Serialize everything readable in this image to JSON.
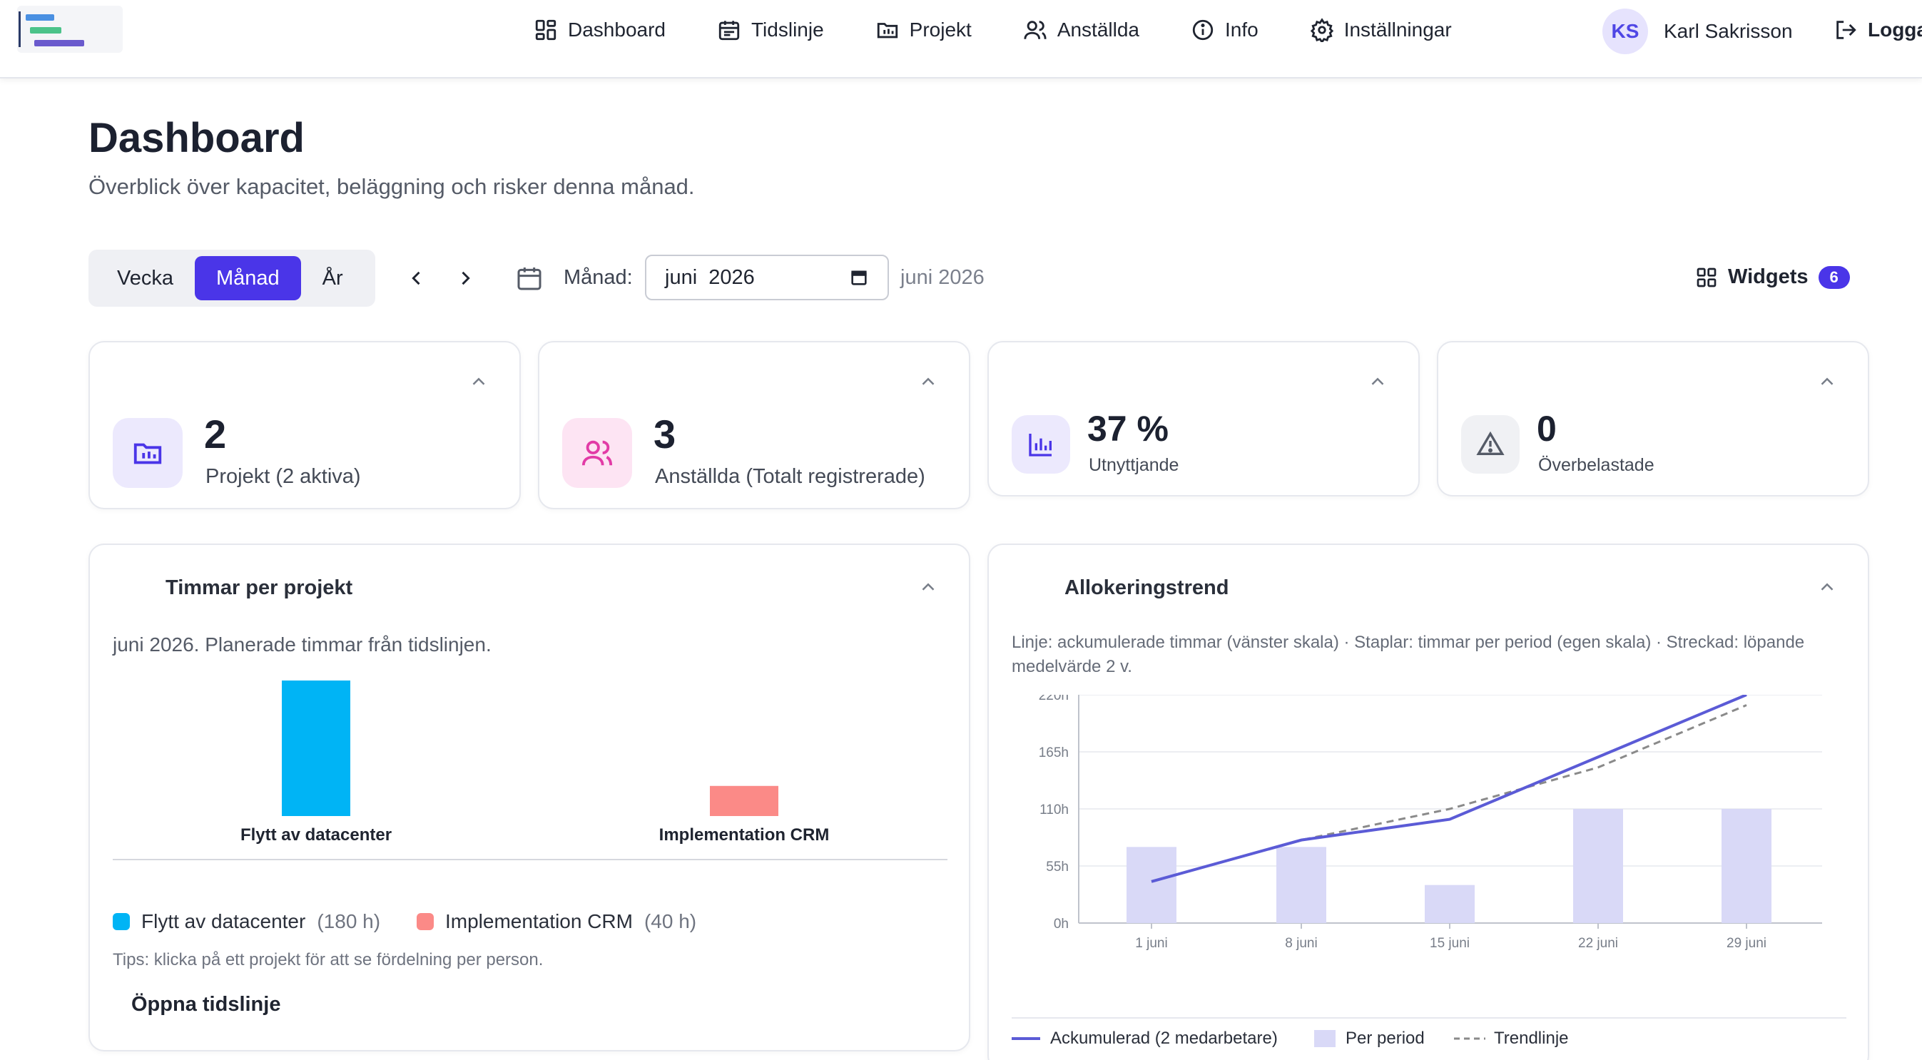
{
  "nav": {
    "items": [
      {
        "label": "Dashboard",
        "icon": "dashboard-icon"
      },
      {
        "label": "Tidslinje",
        "icon": "calendar-icon"
      },
      {
        "label": "Projekt",
        "icon": "folder-icon"
      },
      {
        "label": "Anställda",
        "icon": "users-icon"
      },
      {
        "label": "Info",
        "icon": "info-icon"
      },
      {
        "label": "Inställningar",
        "icon": "gear-icon"
      }
    ],
    "user_initials": "KS",
    "user_name": "Karl Sakrisson",
    "logout_label": "Loggа"
  },
  "page": {
    "title": "Dashboard",
    "subtitle": "Överblick över kapacitet, beläggning och risker denna månad."
  },
  "controls": {
    "periods": [
      "Vecka",
      "Månad",
      "År"
    ],
    "active_period": "Månad",
    "month_label": "Månad:",
    "month_value": "juni  2026",
    "month_echo": "juni 2026",
    "widgets_label": "Widgets",
    "widgets_count": "6"
  },
  "stats": [
    {
      "value": "2",
      "label": "Projekt (2 aktiva)",
      "icon": "folder-chart-icon"
    },
    {
      "value": "3",
      "label": "Anställda (Totalt registrerade)",
      "icon": "users-icon"
    },
    {
      "value": "37 %",
      "label": "Utnyttjande",
      "icon": "bar-chart-icon"
    },
    {
      "value": "0",
      "label": "Överbelastade",
      "icon": "warning-icon"
    }
  ],
  "hours_card": {
    "title": "Timmar per projekt",
    "description": "juni 2026. Planerade timmar från tidslinjen.",
    "tips": "Tips: klicka på ett projekt för att se fördelning per person.",
    "open_label": "Öppna tidslinje",
    "legend": [
      {
        "name": "Flytt av datacenter",
        "hours": "(180 h)"
      },
      {
        "name": "Implementation CRM",
        "hours": "(40 h)"
      }
    ]
  },
  "trend_card": {
    "title": "Allokeringstrend",
    "description": "Linje: ackumulerade timmar (vänster skala) · Staplar: timmar per period (egen skala) · Streckad: löpande medelvärde 2 v.",
    "legend": [
      "Ackumulerad (2 medarbetare)",
      "Per period",
      "Trendlinje"
    ]
  },
  "colors": {
    "accent": "#4a35e8",
    "project_1": "#00b4f5",
    "project_2": "#fb8a87",
    "line": "#5b5bd6",
    "bar": "#d9d9f7",
    "trend": "#8a8a8a"
  },
  "chart_data": [
    {
      "type": "bar",
      "title": "Timmar per projekt",
      "categories": [
        "Flytt av datacenter",
        "Implementation CRM"
      ],
      "values": [
        180,
        40
      ],
      "colors": [
        "#00b4f5",
        "#fb8a87"
      ]
    },
    {
      "type": "line",
      "title": "Allokeringstrend",
      "x": [
        "1 juni",
        "8 juni",
        "15 juni",
        "22 juni",
        "29 juni"
      ],
      "y_ticks": [
        "0h",
        "55h",
        "110h",
        "165h",
        "220h"
      ],
      "ylim": [
        0,
        220
      ],
      "grid": true,
      "legend_position": "bottom",
      "series": [
        {
          "name": "Ackumulerad (2 medarbetare)",
          "kind": "line",
          "values": [
            40,
            80,
            100,
            160,
            220
          ]
        },
        {
          "name": "Per period",
          "kind": "bar",
          "values": [
            40,
            40,
            20,
            60,
            60
          ],
          "scale": "own",
          "scale_max": 120
        },
        {
          "name": "Trendlinje",
          "kind": "dashed",
          "values": [
            40,
            80,
            110,
            150,
            210
          ]
        }
      ]
    }
  ]
}
